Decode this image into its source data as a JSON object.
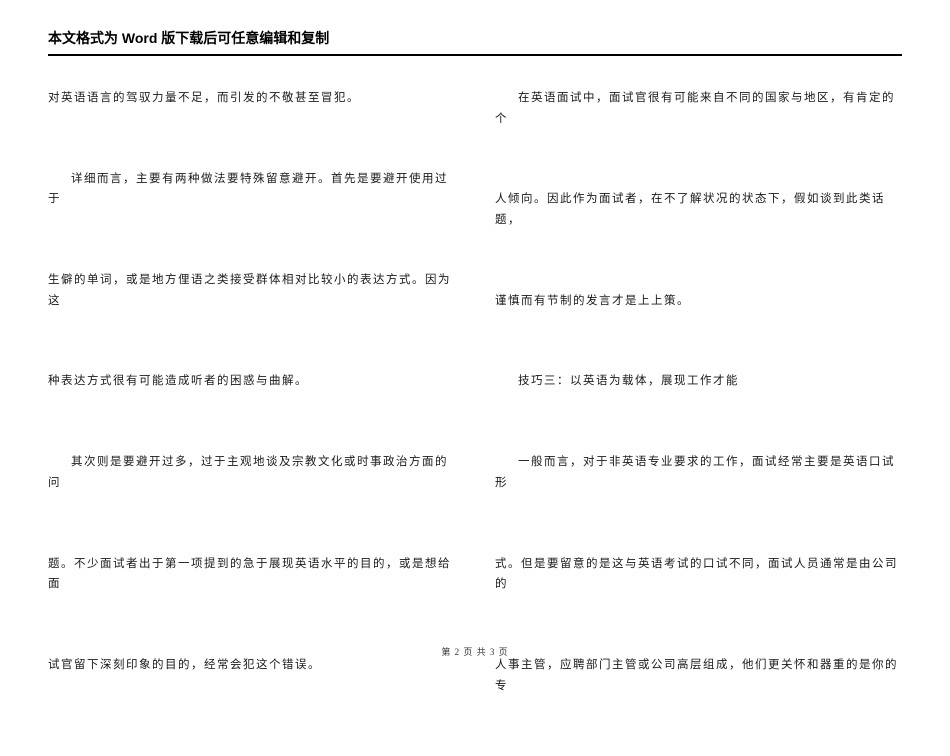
{
  "header": {
    "title": "本文格式为 Word 版下载后可任意编辑和复制"
  },
  "left_column": {
    "p1": "对英语语言的驾驭力量不足，而引发的不敬甚至冒犯。",
    "p2": "详细而言，主要有两种做法要特殊留意避开。首先是要避开使用过于",
    "p3": "生僻的单词，或是地方俚语之类接受群体相对比较小的表达方式。因为这",
    "p4": "种表达方式很有可能造成听者的困惑与曲解。",
    "p5": "其次则是要避开过多，过于主观地谈及宗教文化或时事政治方面的问",
    "p6": "题。不少面试者出于第一项提到的急于展现英语水平的目的，或是想给面",
    "p7": "试官留下深刻印象的目的，经常会犯这个错误。"
  },
  "right_column": {
    "p1": "在英语面试中，面试官很有可能来自不同的国家与地区，有肯定的个",
    "p2": "人倾向。因此作为面试者，在不了解状况的状态下，假如谈到此类话题，",
    "p3": "谨慎而有节制的发言才是上上策。",
    "p4": "技巧三：以英语为载体，展现工作才能",
    "p5": "一般而言，对于非英语专业要求的工作，面试经常主要是英语口试形",
    "p6": "式。但是要留意的是这与英语考试的口试不同，面试人员通常是由公司的",
    "p7": "人事主管，应聘部门主管或公司高层组成，他们更关怀和器重的是你的专"
  },
  "footer": {
    "page_current": "2",
    "page_total": "3",
    "label_prefix": "第",
    "label_page": "页",
    "label_of": "共"
  }
}
